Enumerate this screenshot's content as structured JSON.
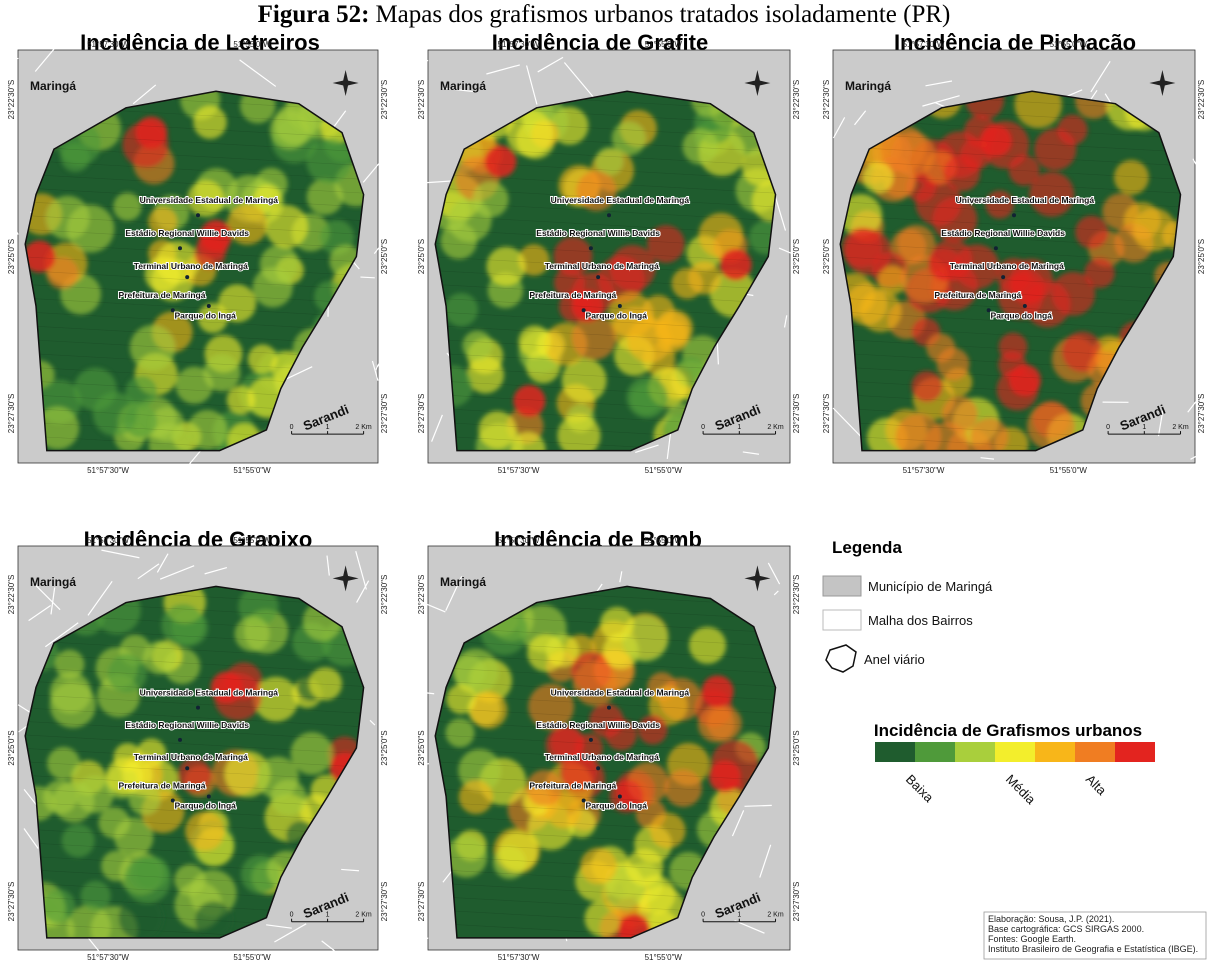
{
  "caption": {
    "label": "Figura 52:",
    "text": "Mapas dos grafismos urbanos tratados isoladamente (PR)"
  },
  "maps": [
    {
      "title": "Incidência de Letreiros"
    },
    {
      "title": "Incidência de Grafite"
    },
    {
      "title": "Incidência de Pichação"
    },
    {
      "title": "Incidência de Grapixo"
    },
    {
      "title": "Incidência de Bomb"
    }
  ],
  "map_labels": {
    "city": "Maringá",
    "neighbor": "Sarandi",
    "places": [
      "Universidade Estadual de Maringá",
      "Estádio Regional Willie Davids",
      "Terminal Urbano de Maringá",
      "Prefeitura de Maringá",
      "Parque do Ingá"
    ],
    "lon_ticks": [
      "51°57'30\"W",
      "51°55'0\"W"
    ],
    "lat_ticks": [
      "23°22'30\"S",
      "23°25'0\"S",
      "23°27'30\"S"
    ],
    "scale": [
      "0",
      "1",
      "2 Km"
    ]
  },
  "legend": {
    "title": "Legenda",
    "items": [
      "Município de Maringá",
      "Malha dos Bairros",
      "Anel viário"
    ],
    "ramp_title": "Incidência de Grafismos urbanos",
    "ramp_labels": [
      "Baixa",
      "Média",
      "Alta"
    ]
  },
  "credits": [
    "Elaboração: Sousa, J.P. (2021).",
    "Base cartográfica: GCS SIRGAS 2000.",
    "Fontes: Google Earth.",
    "Instituto Brasileiro de Geografia e Estatística (IBGE)."
  ]
}
